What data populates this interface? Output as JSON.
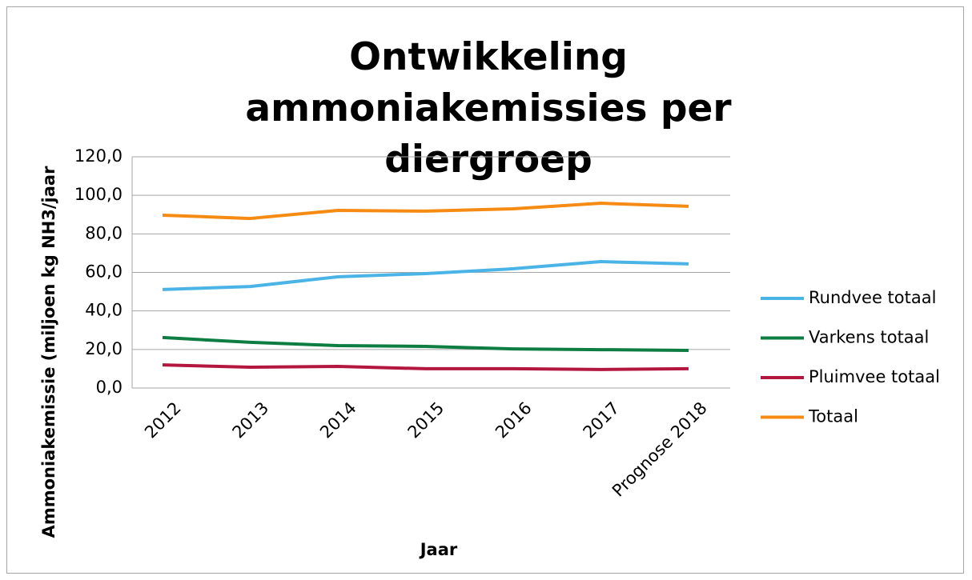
{
  "chart_data": {
    "type": "line",
    "title": "Ontwikkeling ammoniakemissies per diergroep",
    "x_label": "Jaar",
    "y_label": "Ammoniakemissie (miljoen kg NH3/jaar",
    "categories": [
      "2012",
      "2013",
      "2014",
      "2015",
      "2016",
      "2017",
      "Prognose 2018"
    ],
    "series": [
      {
        "name": "Rundvee totaal",
        "color": "#4bb4e6",
        "values": [
          51.1,
          52.7,
          57.7,
          59.4,
          61.9,
          65.6,
          64.4
        ]
      },
      {
        "name": "Varkens totaal",
        "color": "#0e7d42",
        "values": [
          26.2,
          23.7,
          22.0,
          21.6,
          20.3,
          19.9,
          19.5
        ]
      },
      {
        "name": "Pluimvee totaal",
        "color": "#b3163f",
        "values": [
          12.0,
          10.8,
          11.2,
          10.0,
          10.0,
          9.6,
          10.0
        ]
      },
      {
        "name": "Totaal",
        "color": "#f68b14",
        "values": [
          89.7,
          88.0,
          92.2,
          91.8,
          93.0,
          95.9,
          94.3
        ]
      }
    ],
    "ylim": [
      0,
      120
    ],
    "yticks": [
      {
        "value": 0,
        "label": "0,0"
      },
      {
        "value": 20,
        "label": "20,0"
      },
      {
        "value": 40,
        "label": "40,0"
      },
      {
        "value": 60,
        "label": "60,0"
      },
      {
        "value": 80,
        "label": "80,0"
      },
      {
        "value": 100,
        "label": "100,0"
      },
      {
        "value": 120,
        "label": "120,0"
      }
    ],
    "grid": true,
    "legend": "right"
  }
}
